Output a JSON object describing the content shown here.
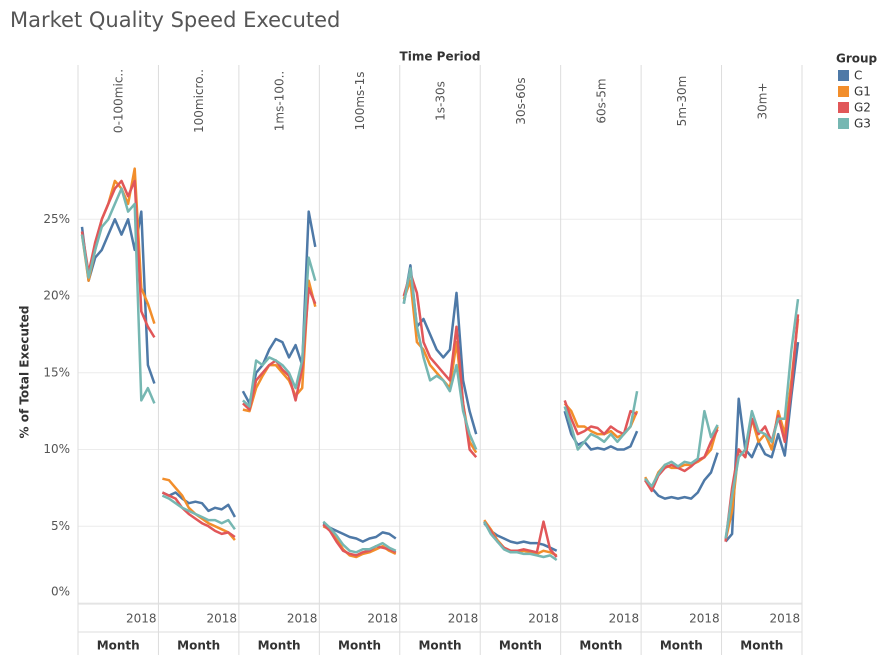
{
  "chart_data": {
    "type": "line",
    "title": "Market Quality Speed Executed",
    "column_header": "Time Period",
    "y_label": "% of Total Executed",
    "ylim": [
      0,
      30
    ],
    "yticks": [
      {
        "value": 0,
        "label": "0%"
      },
      {
        "value": 5,
        "label": "5%"
      },
      {
        "value": 10,
        "label": "10%"
      },
      {
        "value": 15,
        "label": "15%"
      },
      {
        "value": 20,
        "label": "20%"
      },
      {
        "value": 25,
        "label": "25%"
      }
    ],
    "grid": true,
    "legend": {
      "title": "Group",
      "position": "right",
      "items": [
        {
          "name": "C",
          "color": "#4e79a7"
        },
        {
          "name": "G1",
          "color": "#f28e2b"
        },
        {
          "name": "G2",
          "color": "#e15759"
        },
        {
          "name": "G3",
          "color": "#76b7b2"
        }
      ]
    },
    "panels": [
      {
        "title": "0-100mic..",
        "x_label": "Month",
        "categories": [
          null,
          null,
          null,
          null,
          null,
          null,
          null,
          null,
          null,
          "2018",
          null,
          null
        ],
        "series": [
          {
            "values": [
              24.5,
              21,
              22.5,
              23,
              24,
              25,
              24,
              25,
              23,
              25.5,
              15.5,
              14.3
            ]
          },
          {
            "values": [
              24,
              21,
              23,
              25,
              26,
              27.5,
              27,
              26,
              28.3,
              20.5,
              19.5,
              18.2
            ]
          },
          {
            "values": [
              24.2,
              21.5,
              23.5,
              25,
              26,
              27,
              27.5,
              26.5,
              27.5,
              19,
              18,
              17.3
            ]
          },
          {
            "values": [
              24,
              21.2,
              23,
              24.5,
              25,
              26,
              27,
              25.5,
              26,
              13.2,
              14,
              13
            ]
          }
        ]
      },
      {
        "title": "100micro..",
        "x_label": "Month",
        "categories": [
          null,
          null,
          null,
          null,
          null,
          null,
          null,
          null,
          null,
          "2018",
          null,
          null
        ],
        "series": [
          {
            "values": [
              7.2,
              7,
              7.2,
              6.8,
              6.5,
              6.6,
              6.5,
              6,
              6.2,
              6.1,
              6.4,
              5.6
            ]
          },
          {
            "values": [
              8.1,
              8,
              7.5,
              7,
              6.2,
              5.8,
              5.5,
              5.2,
              5,
              4.8,
              4.6,
              4.1
            ]
          },
          {
            "values": [
              7.2,
              7,
              6.8,
              6.2,
              5.8,
              5.5,
              5.2,
              5,
              4.7,
              4.5,
              4.6,
              4.3
            ]
          },
          {
            "values": [
              7,
              6.8,
              6.5,
              6.2,
              6,
              5.8,
              5.6,
              5.4,
              5.4,
              5.2,
              5.4,
              4.8
            ]
          }
        ]
      },
      {
        "title": "1ms-100..",
        "x_label": "Month",
        "categories": [
          null,
          null,
          null,
          null,
          null,
          null,
          null,
          null,
          null,
          "2018",
          null,
          null
        ],
        "series": [
          {
            "values": [
              13.8,
              13,
              15,
              15.5,
              16.5,
              17.2,
              17,
              16,
              16.8,
              15.5,
              25.5,
              23.2
            ]
          },
          {
            "values": [
              12.6,
              12.5,
              14,
              14.8,
              15.5,
              15.5,
              15,
              14.5,
              13.5,
              14,
              21,
              19.3
            ]
          },
          {
            "values": [
              13,
              12.6,
              14.5,
              15,
              15.5,
              15.8,
              15.2,
              14.8,
              13.2,
              15.3,
              20.5,
              19.5
            ]
          },
          {
            "values": [
              13.2,
              12.8,
              15.8,
              15.5,
              16,
              15.8,
              15.5,
              15,
              14,
              15.8,
              22.5,
              21
            ]
          }
        ]
      },
      {
        "title": "100ms-1s",
        "x_label": "Month",
        "categories": [
          null,
          null,
          null,
          null,
          null,
          null,
          null,
          null,
          null,
          "2018",
          null,
          null
        ],
        "series": [
          {
            "values": [
              5.2,
              4.9,
              4.7,
              4.5,
              4.3,
              4.2,
              4,
              4.2,
              4.3,
              4.6,
              4.5,
              4.2
            ]
          },
          {
            "values": [
              5,
              4.8,
              4.2,
              3.5,
              3.1,
              3,
              3.2,
              3.3,
              3.5,
              3.7,
              3.4,
              3.2
            ]
          },
          {
            "values": [
              5.1,
              4.7,
              4,
              3.4,
              3.2,
              3.1,
              3.3,
              3.4,
              3.7,
              3.6,
              3.5,
              3.3
            ]
          },
          {
            "values": [
              5.3,
              4.9,
              4.4,
              3.8,
              3.4,
              3.3,
              3.5,
              3.5,
              3.7,
              3.9,
              3.6,
              3.4
            ]
          }
        ]
      },
      {
        "title": "1s-30s",
        "x_label": "Month",
        "categories": [
          null,
          null,
          null,
          null,
          null,
          null,
          null,
          null,
          null,
          "2018",
          null,
          null
        ],
        "series": [
          {
            "values": [
              19.5,
              22,
              18,
              18.5,
              17.5,
              16.5,
              16,
              16.5,
              20.2,
              14.5,
              12.5,
              11
            ]
          },
          {
            "values": [
              19.8,
              21,
              17,
              16.5,
              15.5,
              15,
              14.5,
              14,
              17,
              13,
              10.5,
              9.8
            ]
          },
          {
            "values": [
              20,
              21.5,
              20.2,
              17,
              16,
              15.5,
              15,
              14.5,
              18,
              13,
              10,
              9.5
            ]
          },
          {
            "values": [
              19.5,
              21.8,
              18,
              16,
              14.5,
              14.8,
              14.5,
              13.8,
              15.5,
              12.5,
              11,
              10
            ]
          }
        ]
      },
      {
        "title": "30s-60s",
        "x_label": "Month",
        "categories": [
          null,
          null,
          null,
          null,
          null,
          null,
          null,
          null,
          null,
          "2018",
          null,
          null
        ],
        "series": [
          {
            "values": [
              5.2,
              4.7,
              4.4,
              4.2,
              4,
              3.9,
              4,
              3.9,
              3.9,
              3.8,
              3.6,
              3.4
            ]
          },
          {
            "values": [
              5.4,
              4.8,
              4.1,
              3.6,
              3.4,
              3.3,
              3.4,
              3.3,
              3.2,
              3.4,
              3.3,
              3.1
            ]
          },
          {
            "values": [
              5.3,
              4.7,
              4,
              3.6,
              3.4,
              3.4,
              3.5,
              3.4,
              3.3,
              5.3,
              3.5,
              3
            ]
          },
          {
            "values": [
              5.3,
              4.5,
              4,
              3.5,
              3.3,
              3.3,
              3.2,
              3.2,
              3.1,
              3,
              3.1,
              2.8
            ]
          }
        ]
      },
      {
        "title": "60s-5m",
        "x_label": "Month",
        "categories": [
          null,
          null,
          null,
          null,
          null,
          null,
          null,
          null,
          null,
          "2018",
          null,
          null
        ],
        "series": [
          {
            "values": [
              12.5,
              11,
              10.3,
              10.5,
              10,
              10.1,
              10,
              10.2,
              10,
              10,
              10.2,
              11.2
            ]
          },
          {
            "values": [
              13,
              12.5,
              11.5,
              11.5,
              11.2,
              11,
              11,
              11.2,
              10.8,
              11,
              11.5,
              12.5
            ]
          },
          {
            "values": [
              13.2,
              12,
              11,
              11.2,
              11.5,
              11.4,
              11,
              11.5,
              11.2,
              11,
              12.5,
              12.3
            ]
          },
          {
            "values": [
              12.8,
              11.5,
              10,
              10.5,
              11,
              10.8,
              10.5,
              11,
              10.5,
              11,
              11.5,
              13.8
            ]
          }
        ]
      },
      {
        "title": "5m-30m",
        "x_label": "Month",
        "categories": [
          null,
          null,
          null,
          null,
          null,
          null,
          null,
          null,
          null,
          "2018",
          null,
          null
        ],
        "series": [
          {
            "values": [
              8,
              7.5,
              7,
              6.8,
              6.9,
              6.8,
              6.9,
              6.8,
              7.2,
              8,
              8.5,
              9.8
            ]
          },
          {
            "values": [
              8.2,
              7.5,
              8.5,
              9,
              8.8,
              8.8,
              9,
              9,
              9.2,
              9.5,
              10,
              11.5
            ]
          },
          {
            "values": [
              8,
              7.3,
              8.3,
              8.8,
              9,
              8.8,
              8.6,
              8.9,
              9.3,
              9.5,
              10.5,
              11.3
            ]
          },
          {
            "values": [
              8.1,
              7.6,
              8.4,
              9,
              9.2,
              8.9,
              9.2,
              9.1,
              9.4,
              12.5,
              10.8,
              11.6
            ]
          }
        ]
      },
      {
        "title": "30m+",
        "x_label": "Month",
        "categories": [
          null,
          null,
          null,
          null,
          null,
          null,
          null,
          null,
          null,
          "2018",
          null,
          null
        ],
        "series": [
          {
            "values": [
              4,
              4.5,
              13.3,
              10,
              9.5,
              10.5,
              9.7,
              9.5,
              11,
              9.6,
              13.5,
              17
            ]
          },
          {
            "values": [
              4.1,
              6,
              10,
              9.5,
              12,
              10.5,
              11,
              10,
              12.5,
              11,
              14.5,
              18.5
            ]
          },
          {
            "values": [
              4,
              7.5,
              10,
              9.5,
              12,
              11,
              11.5,
              10.5,
              12.2,
              10.5,
              14,
              18.8
            ]
          },
          {
            "values": [
              4.2,
              7,
              9.5,
              10,
              12.5,
              11.2,
              11,
              10.5,
              12,
              12,
              16.5,
              19.8
            ]
          }
        ]
      }
    ]
  }
}
